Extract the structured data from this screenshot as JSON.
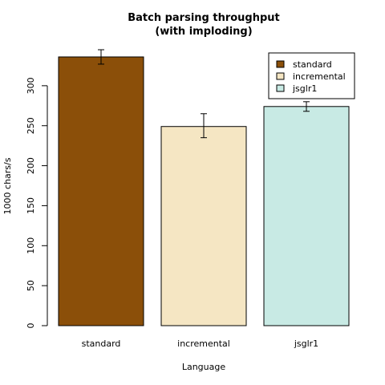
{
  "chart_data": {
    "type": "bar",
    "title_line1": "Batch parsing throughput",
    "title_line2": "(with imploding)",
    "xlabel": "Language",
    "ylabel": "1000 chars/s",
    "categories": [
      "standard",
      "incremental",
      "jsglr1"
    ],
    "values": [
      336,
      249,
      274
    ],
    "errors": [
      {
        "low": 327,
        "high": 345
      },
      {
        "low": 235,
        "high": 265
      },
      {
        "low": 268,
        "high": 280
      }
    ],
    "colors": [
      "#8B4F09",
      "#F5E6C3",
      "#C8EAE4"
    ],
    "ylim": [
      0,
      345
    ],
    "yticks": [
      0,
      50,
      100,
      150,
      200,
      250,
      300
    ],
    "legend": {
      "position": "top-right",
      "entries": [
        "standard",
        "incremental",
        "jsglr1"
      ]
    },
    "grid": false
  }
}
